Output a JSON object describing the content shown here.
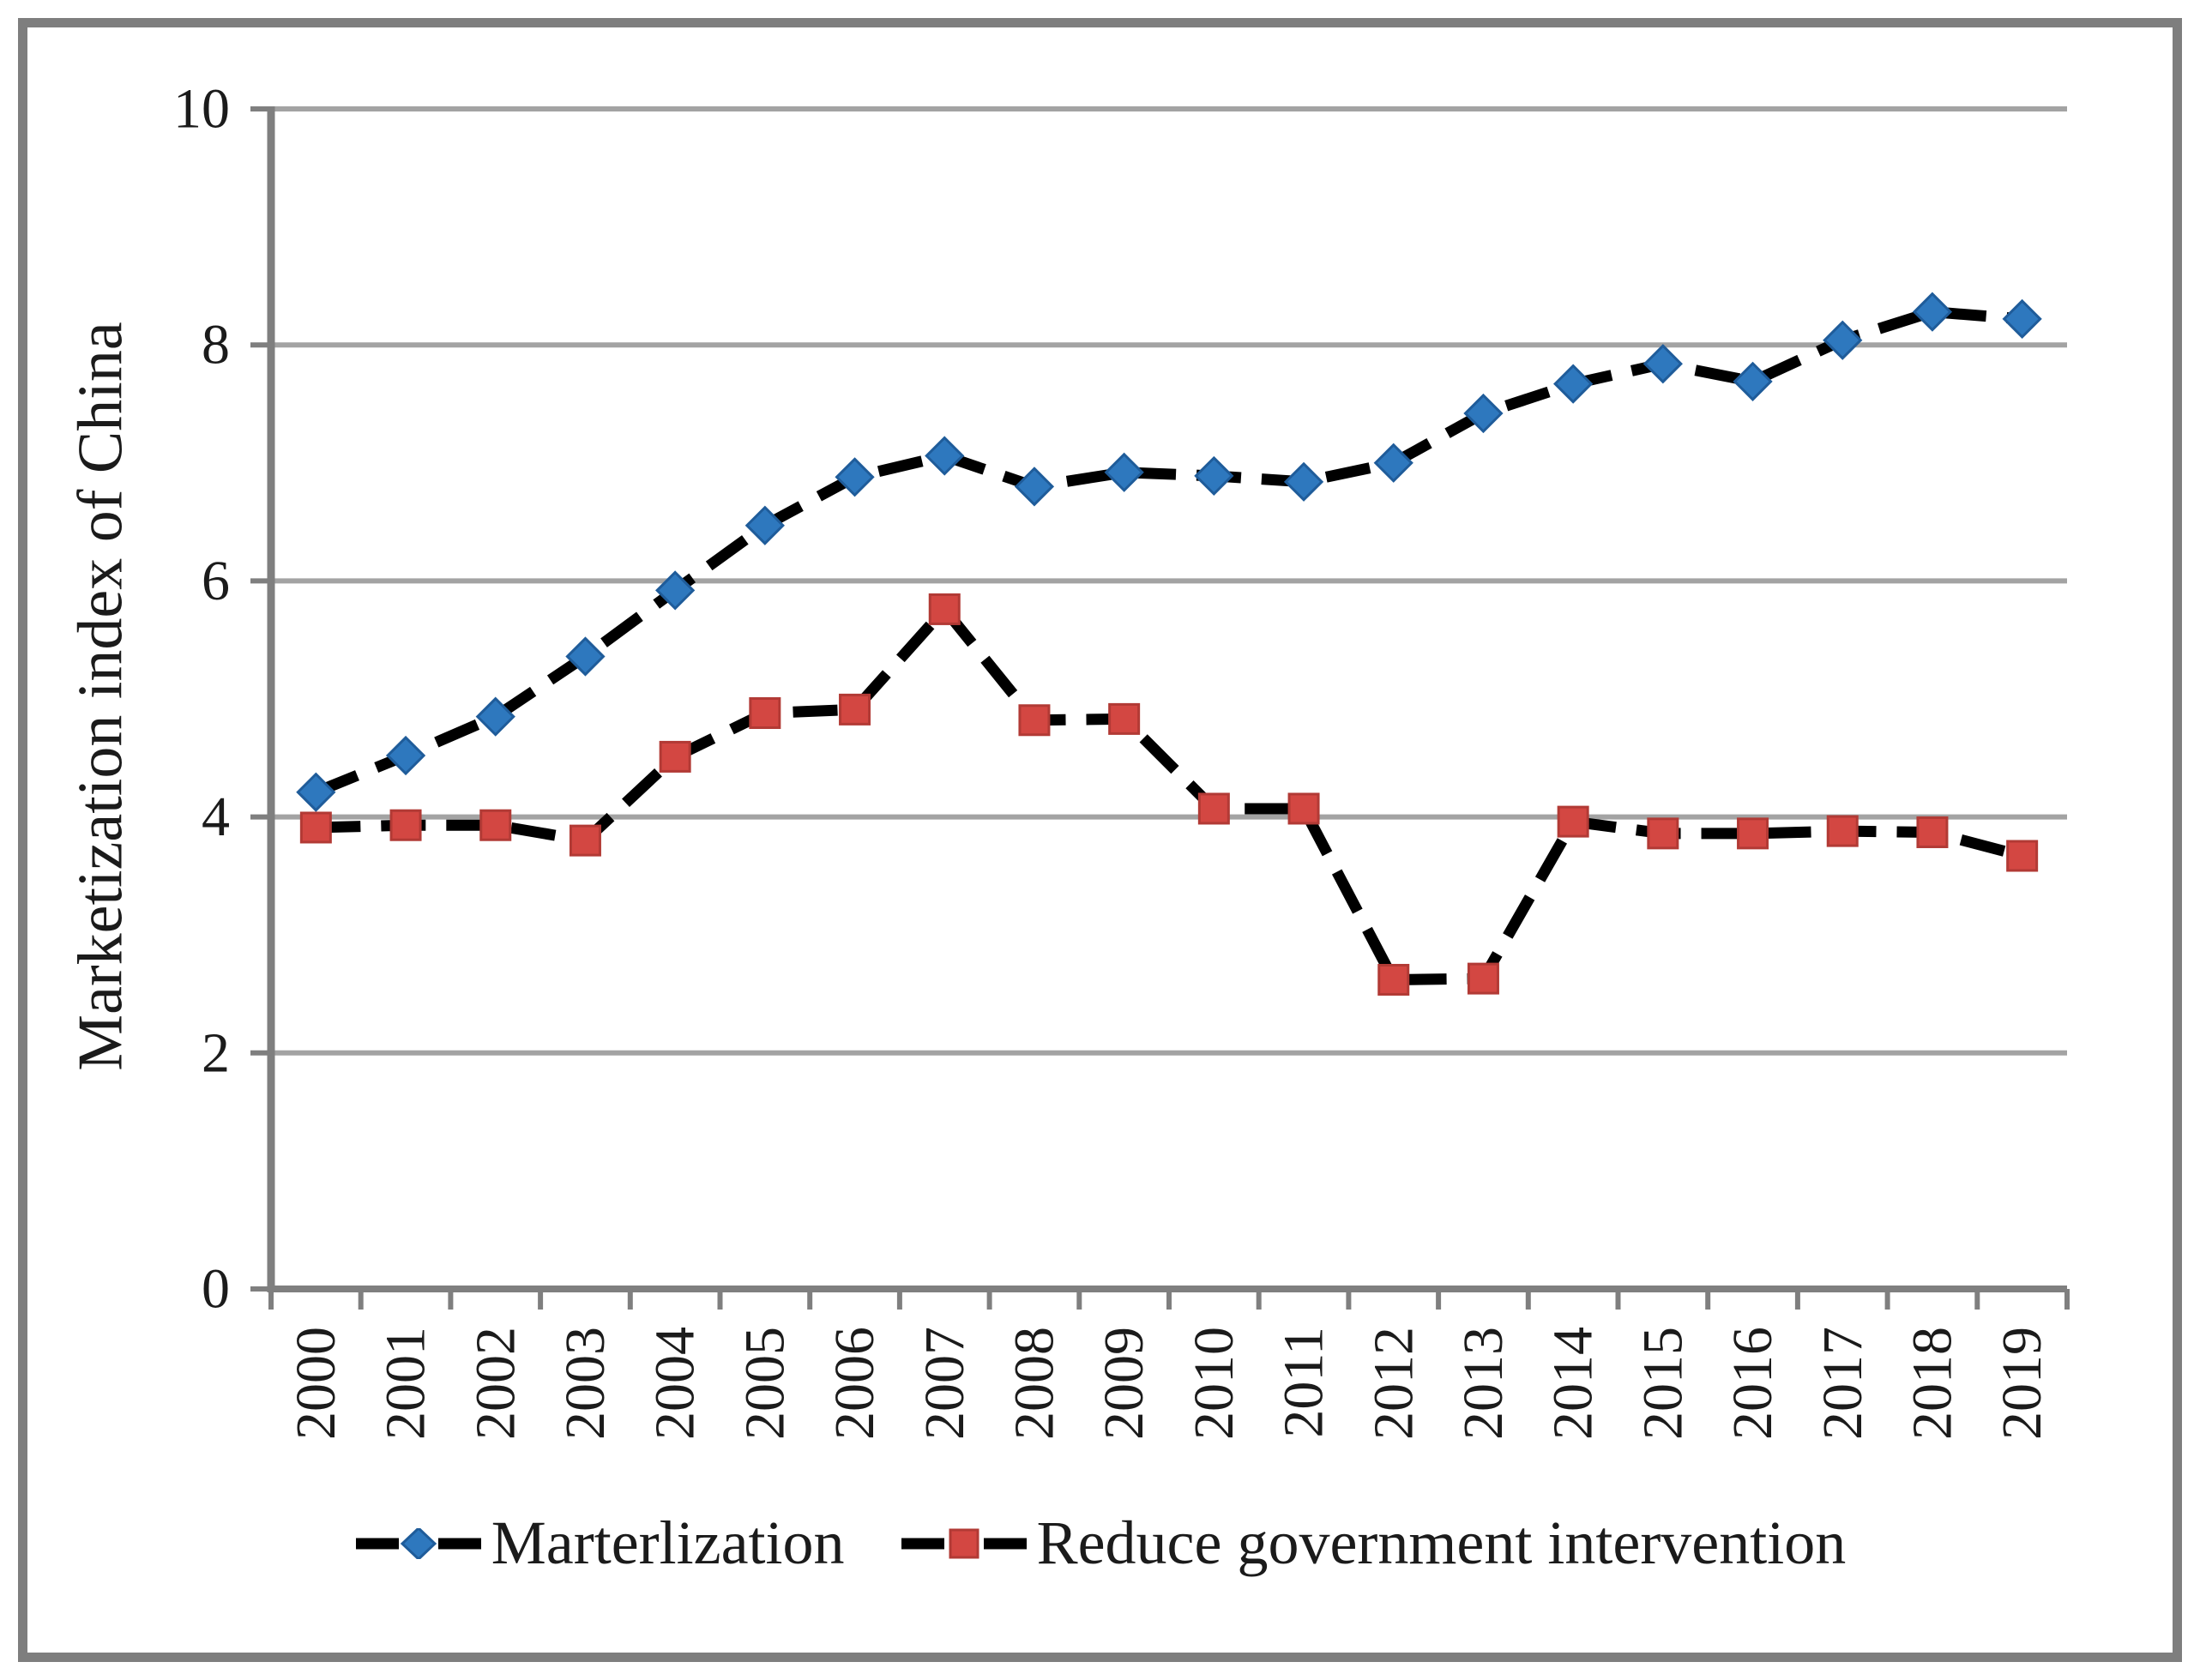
{
  "figure": {
    "frame_color": "#7e7e7e",
    "background": "#ffffff"
  },
  "chart_data": {
    "type": "line",
    "title": "",
    "xlabel": "",
    "ylabel": "Marketization index of China",
    "ylim": [
      0,
      10
    ],
    "yticks": [
      0,
      2,
      4,
      6,
      8,
      10
    ],
    "grid": true,
    "legend_position": "bottom",
    "grid_color": "#a3a3a3",
    "axis_color": "#7f7f7f",
    "tick_label_color": "#1b1b1b",
    "categories": [
      "2000",
      "2001",
      "2002",
      "2003",
      "2004",
      "2005",
      "2006",
      "2007",
      "2008",
      "2009",
      "2010",
      "2011",
      "2012",
      "2013",
      "2014",
      "2015",
      "2016",
      "2017",
      "2018",
      "2019"
    ],
    "series": [
      {
        "name": "Marterlization",
        "marker": "diamond",
        "marker_color": "#2e78be",
        "marker_edge": "#1f5c9a",
        "line_color": "#000000",
        "line_style": "dashed",
        "values": [
          4.21,
          4.52,
          4.85,
          5.36,
          5.92,
          6.47,
          6.88,
          7.06,
          6.8,
          6.92,
          6.89,
          6.84,
          7.0,
          7.42,
          7.67,
          7.84,
          7.69,
          8.04,
          8.28,
          8.22
        ]
      },
      {
        "name": "Reduce government intervention",
        "marker": "square",
        "marker_color": "#d34742",
        "marker_edge": "#b23a35",
        "line_color": "#000000",
        "line_style": "dashed",
        "values": [
          3.91,
          3.93,
          3.93,
          3.8,
          4.51,
          4.88,
          4.91,
          5.76,
          4.82,
          4.83,
          4.07,
          4.07,
          2.62,
          2.63,
          3.96,
          3.86,
          3.86,
          3.88,
          3.87,
          3.67
        ]
      }
    ]
  }
}
